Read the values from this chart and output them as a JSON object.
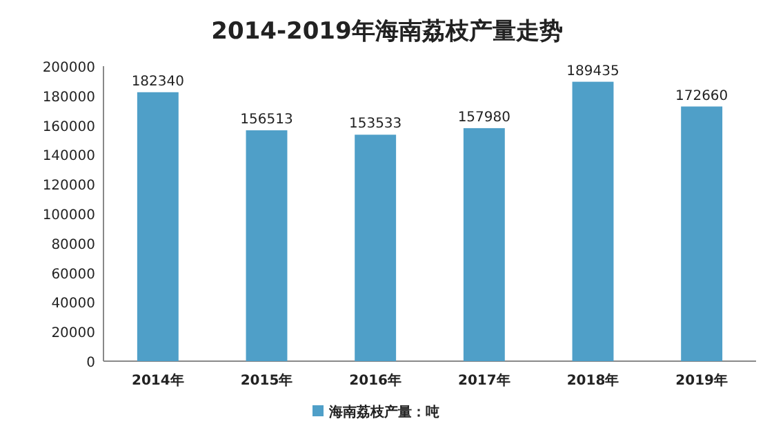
{
  "chart_data": {
    "type": "bar",
    "title": "2014-2019年海南荔枝产量走势",
    "categories": [
      "2014年",
      "2015年",
      "2016年",
      "2017年",
      "2018年",
      "2019年"
    ],
    "series": [
      {
        "name": "海南荔枝产量：吨",
        "color": "#4f9fc8",
        "values": [
          182340,
          156513,
          153533,
          157980,
          189435,
          172660
        ]
      }
    ],
    "ylim": [
      0,
      200000
    ],
    "yticks": [
      0,
      20000,
      40000,
      60000,
      80000,
      100000,
      120000,
      140000,
      160000,
      180000,
      200000
    ],
    "grid": false,
    "legend": "bottom",
    "data_labels": true
  }
}
